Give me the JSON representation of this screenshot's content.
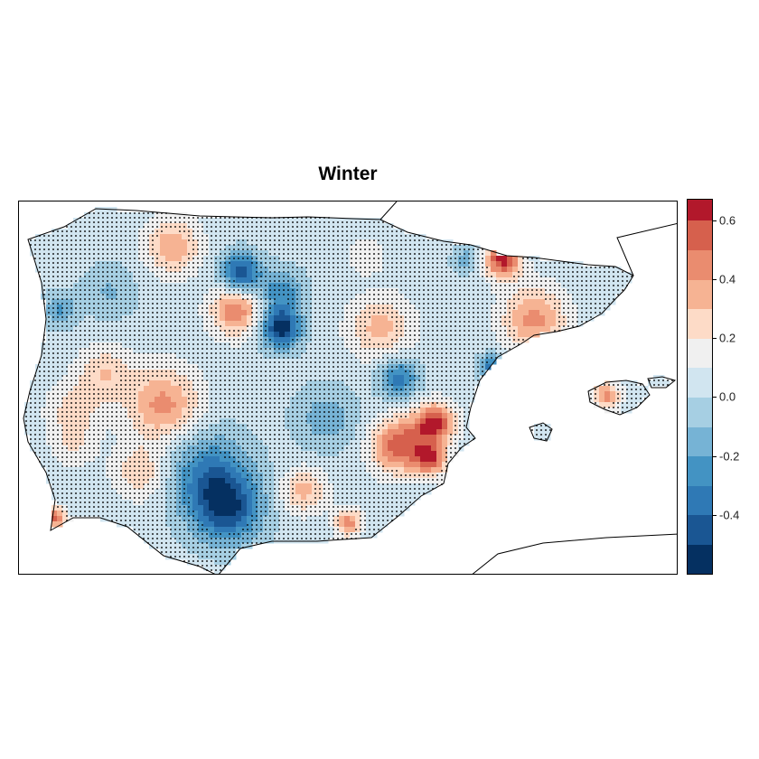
{
  "map": {
    "title": "Winter",
    "region": "Iberian Peninsula and Balearic Islands",
    "features": {
      "coastlines": true,
      "stippling_marks_grid_cells": true,
      "stipple_color": "#000000"
    },
    "colors": {
      "frame": "#000000",
      "background": "#ffffff"
    }
  },
  "legend": {
    "orientation": "vertical",
    "position": "right",
    "range": [
      -0.6,
      0.67
    ],
    "breaks": [
      -0.6,
      -0.5,
      -0.4,
      -0.3,
      -0.2,
      -0.1,
      0.0,
      0.1,
      0.2,
      0.3,
      0.4,
      0.5,
      0.6,
      0.67
    ],
    "colors": [
      "#053061",
      "#1a5693",
      "#2f79b5",
      "#4393c3",
      "#76b3d5",
      "#a6cfe3",
      "#d1e5f0",
      "#f0f0f0",
      "#fddbc7",
      "#f6b393",
      "#ea8c6f",
      "#d6604d",
      "#b2182b",
      "#67001f"
    ],
    "ticks": [
      {
        "value": -0.4,
        "label": "-0.4"
      },
      {
        "value": -0.2,
        "label": "-0.2"
      },
      {
        "value": 0.0,
        "label": "0.0"
      },
      {
        "value": 0.2,
        "label": "0.2"
      },
      {
        "value": 0.4,
        "label": "0.4"
      },
      {
        "value": 0.6,
        "label": "0.6"
      }
    ]
  }
}
